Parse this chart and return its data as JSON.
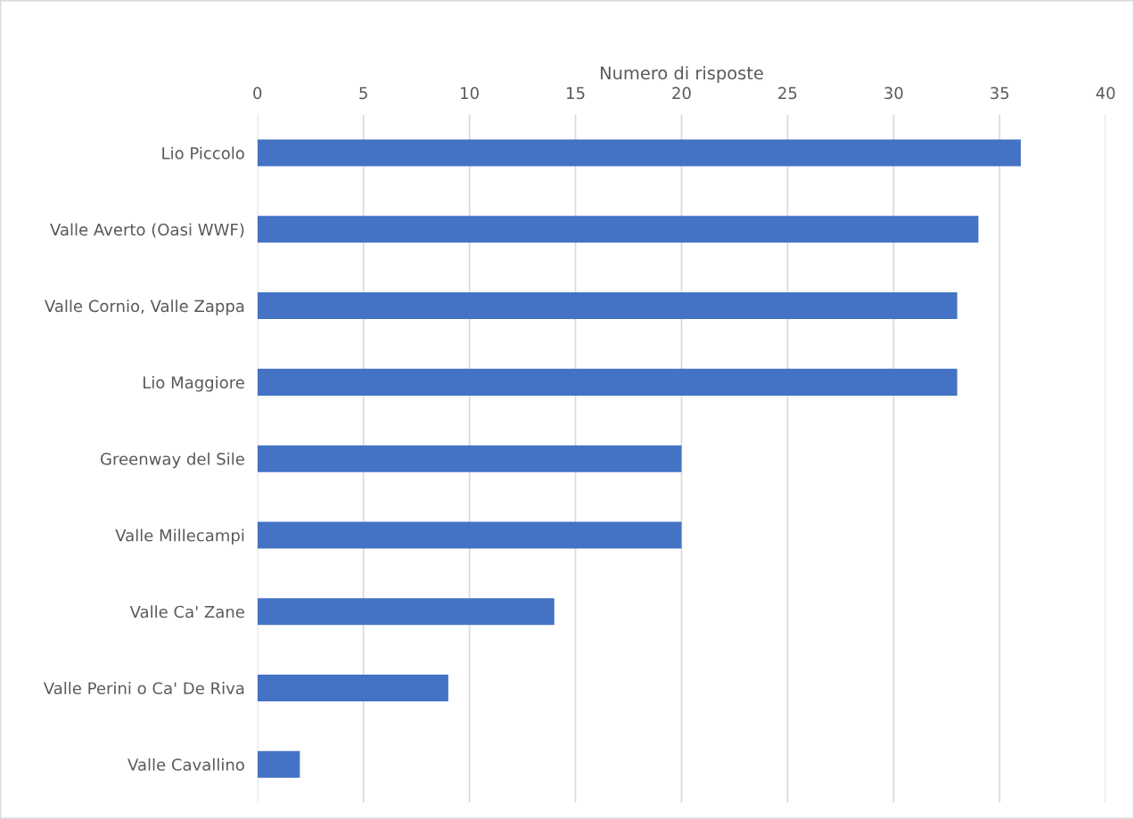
{
  "chart_data": {
    "type": "bar",
    "orientation": "horizontal",
    "xlabel": "Numero di risposte",
    "categories": [
      "Lio Piccolo",
      "Valle Averto (Oasi WWF)",
      "Valle Cornio, Valle Zappa",
      "Lio Maggiore",
      "Greenway del Sile",
      "Valle Millecampi",
      "Valle Ca' Zane",
      "Valle Perini o Ca' De Riva",
      "Valle Cavallino"
    ],
    "values": [
      36,
      34,
      33,
      33,
      20,
      20,
      14,
      9,
      2
    ],
    "color": "#4472c4",
    "xlim": [
      0,
      40
    ],
    "xticks": [
      0,
      5,
      10,
      15,
      20,
      25,
      30,
      35,
      40
    ],
    "grid": "x",
    "legend": false
  }
}
